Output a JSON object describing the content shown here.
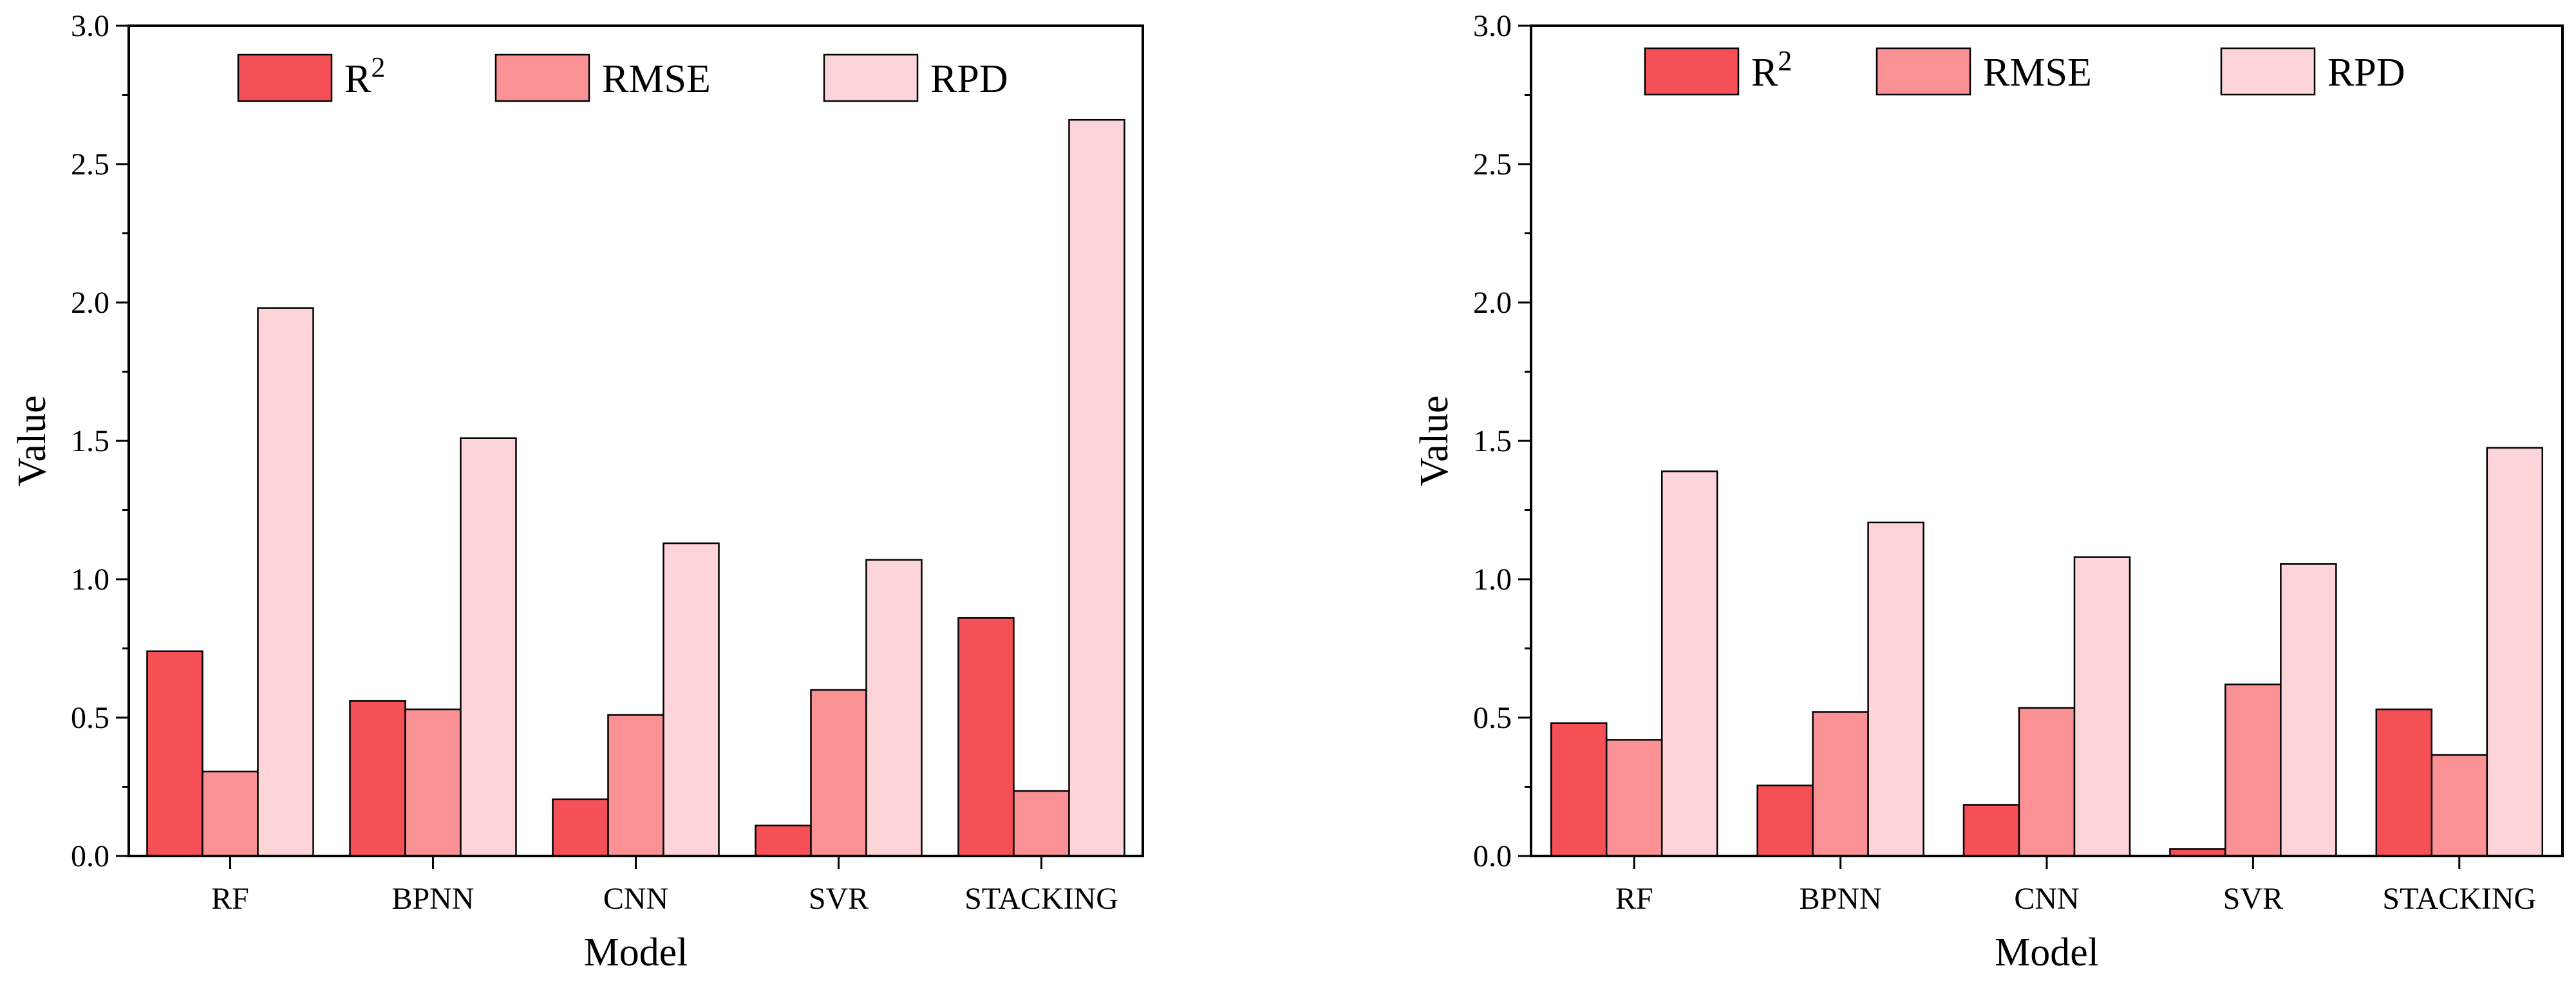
{
  "chart_data": [
    {
      "type": "bar",
      "title": "",
      "xlabel": "Model",
      "ylabel": "Value",
      "ylim": [
        0,
        3.0
      ],
      "yticks": [
        "0.0",
        "0.5",
        "1.0",
        "1.5",
        "2.0",
        "2.5",
        "3.0"
      ],
      "categories": [
        "RF",
        "BPNN",
        "CNN",
        "SVR",
        "STACKING"
      ],
      "series": [
        {
          "name": "R",
          "sup": "2",
          "color": "#f55056",
          "values": [
            0.74,
            0.56,
            0.205,
            0.11,
            0.86
          ]
        },
        {
          "name": "RMSE",
          "color": "#fa9195",
          "values": [
            0.305,
            0.53,
            0.51,
            0.6,
            0.235
          ]
        },
        {
          "name": "RPD",
          "color": "#fdd5d8",
          "values": [
            1.98,
            1.51,
            1.13,
            1.07,
            2.66
          ]
        }
      ],
      "legend": "top"
    },
    {
      "type": "bar",
      "title": "",
      "xlabel": "Model",
      "ylabel": "Value",
      "ylim": [
        0,
        3.0
      ],
      "yticks": [
        "0.0",
        "0.5",
        "1.0",
        "1.5",
        "2.0",
        "2.5",
        "3.0"
      ],
      "categories": [
        "RF",
        "BPNN",
        "CNN",
        "SVR",
        "STACKING"
      ],
      "series": [
        {
          "name": "R",
          "sup": "2",
          "color": "#f55056",
          "values": [
            0.48,
            0.255,
            0.185,
            0.025,
            0.53
          ]
        },
        {
          "name": "RMSE",
          "color": "#fa9195",
          "values": [
            0.42,
            0.52,
            0.535,
            0.62,
            0.365
          ]
        },
        {
          "name": "RPD",
          "color": "#fdd5d8",
          "values": [
            1.39,
            1.205,
            1.08,
            1.055,
            1.475
          ]
        }
      ],
      "legend": "top"
    }
  ]
}
